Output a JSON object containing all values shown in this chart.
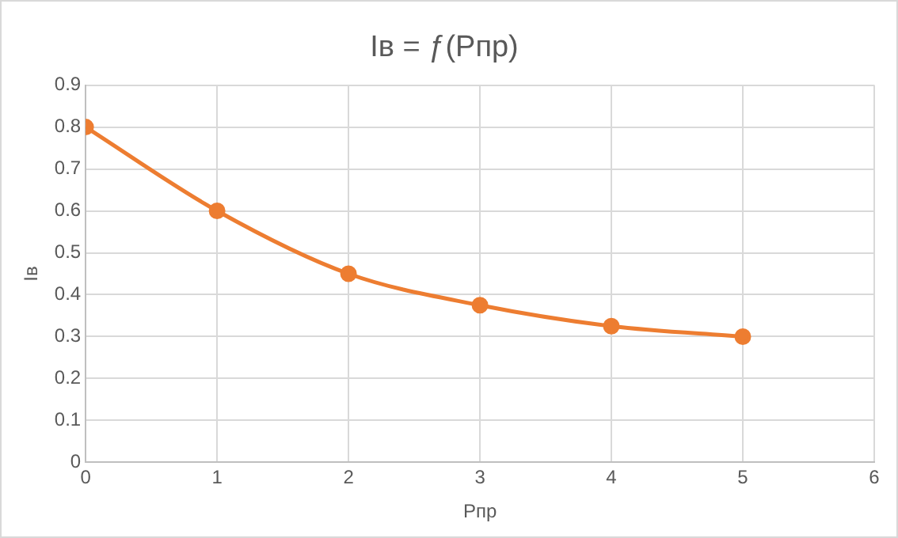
{
  "chart_data": {
    "type": "line",
    "title": "Iв = ƒ(Pпр)",
    "xlabel": "Pпр",
    "ylabel": "Iв",
    "x": [
      0,
      1,
      2,
      3,
      4,
      5
    ],
    "series": [
      {
        "color": "#ed7d31",
        "values": [
          0.8,
          0.6,
          0.45,
          0.375,
          0.325,
          0.3
        ]
      }
    ],
    "xlim": [
      0,
      6
    ],
    "xticks": [
      0,
      1,
      2,
      3,
      4,
      5,
      6
    ],
    "ylim": [
      0,
      0.9
    ],
    "yticks": [
      0,
      0.1,
      0.2,
      0.3,
      0.4,
      0.5,
      0.6,
      0.7,
      0.8,
      0.9
    ],
    "grid": true,
    "legend": false,
    "marker": "circle",
    "line_style": "solid"
  }
}
